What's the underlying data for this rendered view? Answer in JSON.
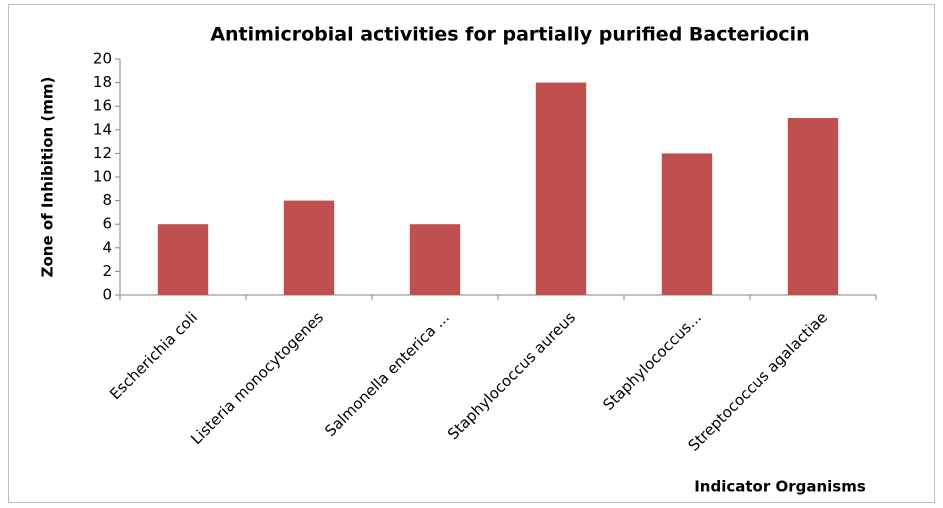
{
  "chart_data": {
    "type": "bar",
    "title": "Antimicrobial activities for partially purified Bacteriocin",
    "x_label": "Indicator Organisms",
    "y_label": "Zone of Inhibition (mm)",
    "categories": [
      "Escherichia coli",
      "Listeria monocytogenes",
      "Salmonella enterica ...",
      "Staphylococcus aureus",
      "Staphylococcus...",
      "Streptococcus agalactiae"
    ],
    "values": [
      6,
      8,
      6,
      18,
      12,
      15
    ],
    "color": "#c0504d",
    "ylim": [
      0,
      20
    ],
    "yticks": [
      0,
      2,
      4,
      6,
      8,
      10,
      12,
      14,
      16,
      18,
      20
    ],
    "grid": false
  }
}
